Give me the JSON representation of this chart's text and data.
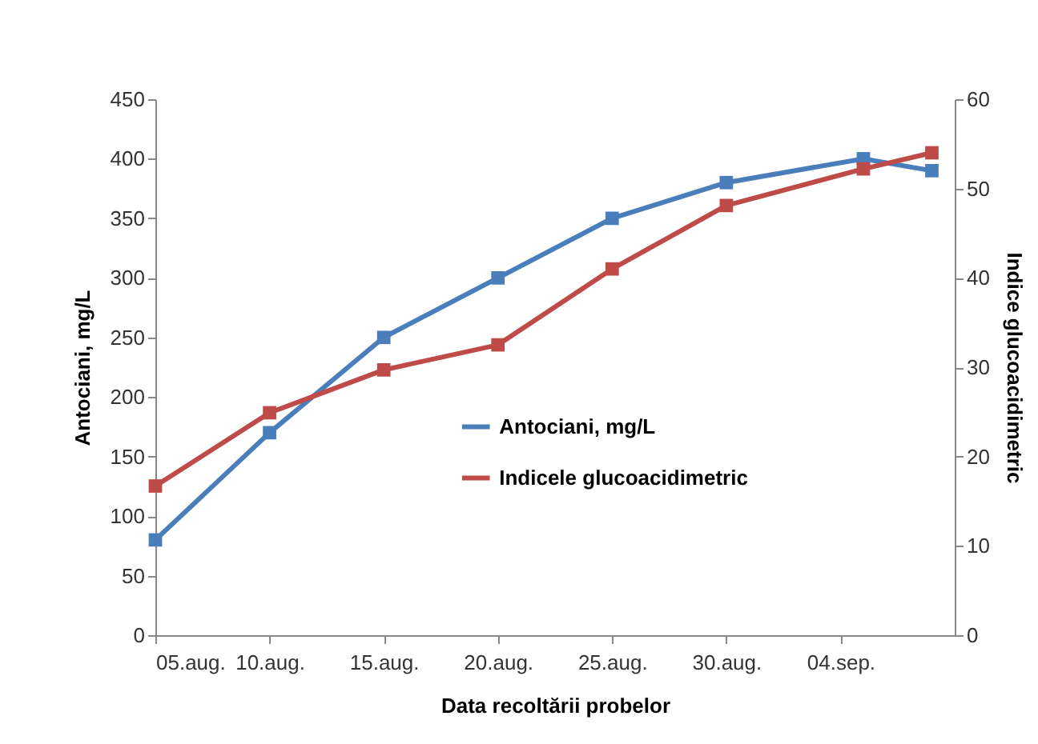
{
  "chart_data": {
    "type": "line",
    "xlabel": "Data recoltării probelor",
    "ylabel": "Antociani, mg/L",
    "y2label": "Indice glucoacidimetric",
    "x": [
      "--08-05",
      "--08-10",
      "--08-15",
      "--08-20",
      "--08-25",
      "--08-30",
      "--09-05",
      "--09-08"
    ],
    "xlim": [
      "--08-05",
      "--09-09"
    ],
    "xticks": [
      {
        "value": "--08-05",
        "label": "05.aug."
      },
      {
        "value": "--08-10",
        "label": "10.aug."
      },
      {
        "value": "--08-15",
        "label": "15.aug."
      },
      {
        "value": "--08-20",
        "label": "20.aug."
      },
      {
        "value": "--08-25",
        "label": "25.aug."
      },
      {
        "value": "--08-30",
        "label": "30.aug."
      },
      {
        "value": "--09-04",
        "label": "04.sep."
      }
    ],
    "ylim": [
      0,
      450
    ],
    "yticks": [
      0,
      50,
      100,
      150,
      200,
      250,
      300,
      350,
      400,
      450
    ],
    "y2lim": [
      0,
      60
    ],
    "y2ticks": [
      0,
      10,
      20,
      30,
      40,
      50,
      60
    ],
    "series": [
      {
        "name": "Antociani, mg/L",
        "color": "#4a7ebb",
        "values": [
          80,
          170,
          250,
          300,
          350,
          380,
          400,
          390
        ]
      },
      {
        "name": "Indicele glucoacidimetric",
        "color": "#be4b48",
        "axis": "y2",
        "values": [
          16.7,
          24.9,
          29.7,
          32.5,
          41.0,
          48.1,
          52.2,
          54.0
        ]
      }
    ],
    "marker": "square",
    "line_style": "solid",
    "grid": false,
    "legend": "center"
  }
}
